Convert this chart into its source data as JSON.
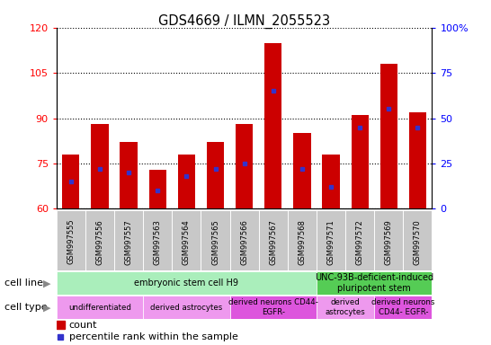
{
  "title": "GDS4669 / ILMN_2055523",
  "samples": [
    "GSM997555",
    "GSM997556",
    "GSM997557",
    "GSM997563",
    "GSM997564",
    "GSM997565",
    "GSM997566",
    "GSM997567",
    "GSM997568",
    "GSM997571",
    "GSM997572",
    "GSM997569",
    "GSM997570"
  ],
  "count_values": [
    78,
    88,
    82,
    73,
    78,
    82,
    88,
    115,
    85,
    78,
    91,
    108,
    92
  ],
  "percentile_values": [
    15,
    22,
    20,
    10,
    18,
    22,
    25,
    65,
    22,
    12,
    45,
    55,
    45
  ],
  "ylim_left": [
    60,
    120
  ],
  "ylim_right": [
    0,
    100
  ],
  "yticks_left": [
    60,
    75,
    90,
    105,
    120
  ],
  "yticks_right": [
    0,
    25,
    50,
    75,
    100
  ],
  "bar_color": "#cc0000",
  "dot_color": "#3333cc",
  "cell_line_groups": [
    {
      "label": "embryonic stem cell H9",
      "start": 0,
      "end": 9,
      "color": "#aaeebb"
    },
    {
      "label": "UNC-93B-deficient-induced\npluripotent stem",
      "start": 9,
      "end": 13,
      "color": "#55cc55"
    }
  ],
  "cell_type_groups": [
    {
      "label": "undifferentiated",
      "start": 0,
      "end": 3,
      "color": "#ee99ee"
    },
    {
      "label": "derived astrocytes",
      "start": 3,
      "end": 6,
      "color": "#ee99ee"
    },
    {
      "label": "derived neurons CD44-\nEGFR-",
      "start": 6,
      "end": 9,
      "color": "#dd55dd"
    },
    {
      "label": "derived\nastrocytes",
      "start": 9,
      "end": 11,
      "color": "#ee99ee"
    },
    {
      "label": "derived neurons\nCD44- EGFR-",
      "start": 11,
      "end": 13,
      "color": "#dd55dd"
    }
  ],
  "legend_count_color": "#cc0000",
  "legend_dot_color": "#3333cc",
  "fig_width": 5.46,
  "fig_height": 3.84,
  "dpi": 100
}
